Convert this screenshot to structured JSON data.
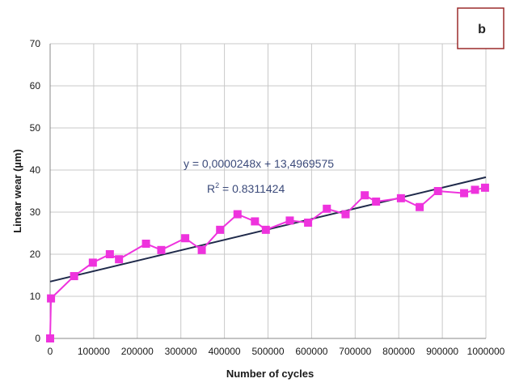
{
  "chart_data": {
    "type": "line",
    "panel_label": "b",
    "xlabel": "Number of cycles",
    "ylabel": "Linear wear (µm)",
    "xlim": [
      0,
      1000000
    ],
    "ylim": [
      0,
      70
    ],
    "x_ticks": [
      0,
      100000,
      200000,
      300000,
      400000,
      500000,
      600000,
      700000,
      800000,
      900000,
      1000000
    ],
    "y_ticks": [
      0,
      10,
      20,
      30,
      40,
      50,
      60,
      70
    ],
    "grid": true,
    "series": [
      {
        "color": "#ee33dd",
        "marker": "square",
        "x": [
          0,
          2000,
          55000,
          98000,
          137000,
          158000,
          220000,
          255000,
          310000,
          348000,
          390000,
          430000,
          470000,
          495000,
          550000,
          592000,
          635000,
          678000,
          722000,
          748000,
          805000,
          848000,
          890000,
          950000,
          975000,
          998000
        ],
        "y": [
          0,
          9.5,
          14.8,
          18.0,
          20.0,
          18.8,
          22.5,
          21.0,
          23.8,
          21.0,
          25.8,
          29.5,
          27.8,
          25.8,
          28.0,
          27.5,
          30.8,
          29.5,
          34.0,
          32.5,
          33.3,
          31.2,
          35.0,
          34.5,
          35.3,
          35.8
        ]
      },
      {
        "type": "trendline",
        "color": "#1f2a4a",
        "slope": 2.48e-05,
        "intercept": 13.4969575
      }
    ],
    "annotations": {
      "equation": "y = 0,0000248x + 13,4969575",
      "r2_prefix": "R",
      "r2_sup": "2",
      "r2_value": " = 0.8311424"
    }
  }
}
